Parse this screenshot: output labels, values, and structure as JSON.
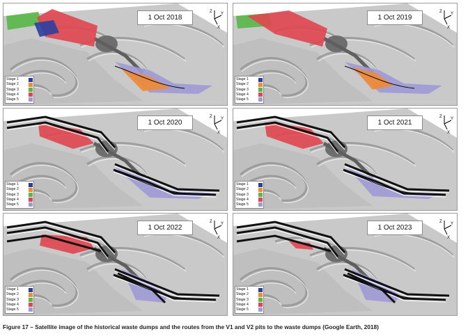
{
  "figure": {
    "caption": "Figure 17 – Satellite image of the historical waste dumps and the routes from the V1 and V2 pits to the waste dumps (Google Earth, 2018)",
    "axis_labels": {
      "z": "Z",
      "y": "Y",
      "x": "X"
    },
    "legend": [
      {
        "label": "Stage 1",
        "color": "#2b3f9e"
      },
      {
        "label": "Stage 2",
        "color": "#f08a34"
      },
      {
        "label": "Stage 3",
        "color": "#58b847"
      },
      {
        "label": "Stage 4",
        "color": "#e0464f"
      },
      {
        "label": "Stage 5",
        "color": "#9e9ad6"
      }
    ],
    "panels": [
      {
        "id": "p2018",
        "date": "1 Oct 2018"
      },
      {
        "id": "p2019",
        "date": "1 Oct 2019"
      },
      {
        "id": "p2020",
        "date": "1 Oct 2020"
      },
      {
        "id": "p2021",
        "date": "1 Oct 2021"
      },
      {
        "id": "p2022",
        "date": "1 Oct 2022"
      },
      {
        "id": "p2023",
        "date": "1 Oct 2023"
      }
    ]
  }
}
